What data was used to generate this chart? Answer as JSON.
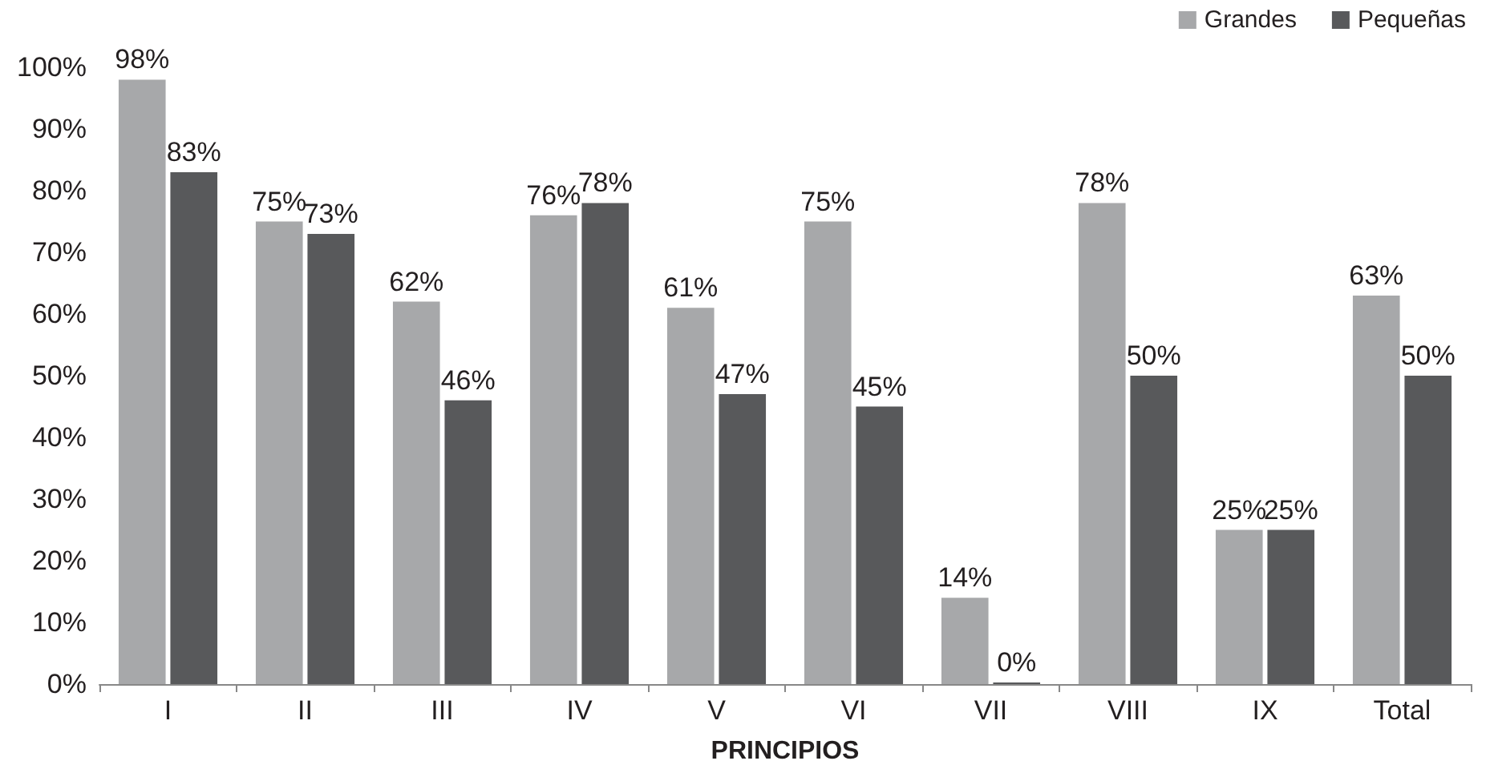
{
  "chart_data": {
    "type": "bar",
    "xlabel": "PRINCIPIOS",
    "categories": [
      "I",
      "II",
      "III",
      "IV",
      "V",
      "VI",
      "VII",
      "VIII",
      "IX",
      "Total"
    ],
    "series": [
      {
        "name": "Grandes",
        "color": "#a7a8aa",
        "values": [
          98,
          75,
          62,
          76,
          61,
          75,
          14,
          78,
          25,
          63
        ],
        "value_labels": [
          "98%",
          "75%",
          "62%",
          "76%",
          "61%",
          "75%",
          "14%",
          "78%",
          "25%",
          "63%"
        ]
      },
      {
        "name": "Pequeñas",
        "color": "#58595b",
        "values": [
          83,
          73,
          46,
          78,
          47,
          45,
          0,
          50,
          25,
          50
        ],
        "value_labels": [
          "83%",
          "73%",
          "46%",
          "78%",
          "47%",
          "45%",
          "0%",
          "50%",
          "25%",
          "50%"
        ]
      }
    ],
    "ylim": [
      0,
      100
    ],
    "yticks": [
      {
        "value": 0,
        "label": "0%"
      },
      {
        "value": 10,
        "label": "10%"
      },
      {
        "value": 20,
        "label": "20%"
      },
      {
        "value": 30,
        "label": "30%"
      },
      {
        "value": 40,
        "label": "40%"
      },
      {
        "value": 50,
        "label": "50%"
      },
      {
        "value": 60,
        "label": "60%"
      },
      {
        "value": 70,
        "label": "70%"
      },
      {
        "value": 80,
        "label": "80%"
      },
      {
        "value": 90,
        "label": "90%"
      },
      {
        "value": 100,
        "label": "100%"
      }
    ],
    "legend": "top right"
  }
}
